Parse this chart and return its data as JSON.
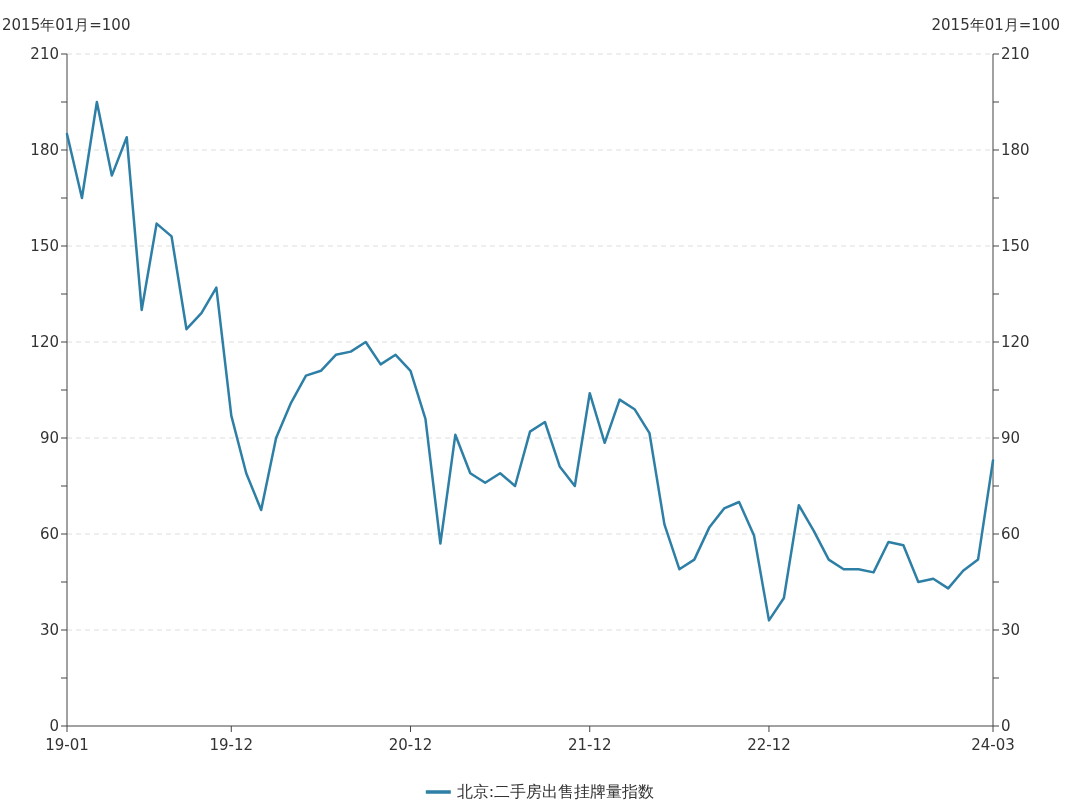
{
  "chart_data": {
    "type": "line",
    "ylabel": "2015年01月=100",
    "y2label": "2015年01月=100",
    "categories": [
      "19-01",
      null,
      null,
      null,
      null,
      null,
      null,
      null,
      null,
      null,
      null,
      "19-12",
      null,
      null,
      null,
      null,
      null,
      null,
      null,
      null,
      null,
      null,
      null,
      "20-12",
      null,
      null,
      null,
      null,
      null,
      null,
      null,
      null,
      null,
      null,
      null,
      "21-12",
      null,
      null,
      null,
      null,
      null,
      null,
      null,
      null,
      null,
      null,
      null,
      "22-12",
      null,
      null,
      null,
      null,
      null,
      null,
      null,
      null,
      null,
      null,
      null,
      null,
      null,
      null,
      "24-03"
    ],
    "series": [
      {
        "name": "北京:二手房出售挂牌量指数",
        "color": "#2e7fa6",
        "values": [
          185,
          165,
          195,
          172,
          184,
          130,
          157,
          153,
          124,
          129,
          137,
          97,
          79,
          67.5,
          90,
          101,
          109.5,
          111,
          116,
          117,
          120,
          113,
          116,
          111,
          96,
          57,
          91,
          79,
          76,
          79,
          75,
          92,
          95,
          81,
          75,
          104,
          88.5,
          102,
          99,
          91.5,
          63,
          49,
          52,
          62,
          68,
          70,
          59.5,
          33,
          40,
          69,
          61,
          52,
          49,
          49,
          48,
          57.5,
          56.5,
          45,
          46,
          43,
          48.5,
          52,
          83
        ]
      }
    ],
    "ylim": [
      0,
      210
    ],
    "yticks": [
      0,
      {
        "value": 15,
        "label": null
      },
      30,
      {
        "value": 45,
        "label": null
      },
      60,
      {
        "value": 75,
        "label": null
      },
      90,
      {
        "value": 105,
        "label": null
      },
      120,
      {
        "value": 135,
        "label": null
      },
      150,
      {
        "value": 165,
        "label": null
      },
      180,
      {
        "value": 195,
        "label": null
      },
      210
    ],
    "y2lim": [
      0,
      210
    ],
    "y2ticks": [
      0,
      {
        "value": 15,
        "label": null
      },
      30,
      {
        "value": 45,
        "label": null
      },
      60,
      {
        "value": 75,
        "label": null
      },
      90,
      {
        "value": 105,
        "label": null
      },
      120,
      {
        "value": 135,
        "label": null
      },
      150,
      {
        "value": 165,
        "label": null
      },
      180,
      {
        "value": 195,
        "label": null
      },
      210
    ],
    "grid": "y",
    "legend": "bottom",
    "marker": "none",
    "line_style": "solid"
  }
}
